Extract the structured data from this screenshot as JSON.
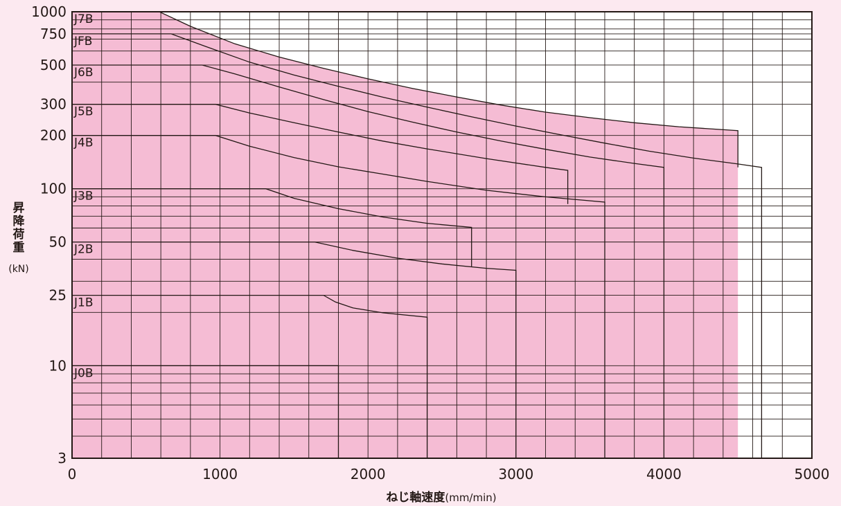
{
  "colors": {
    "background": "#fce9f0",
    "plot_background": "#ffffff",
    "fill_dark": "#f5bcd4",
    "fill_light": "#f8e1ea",
    "line": "#231815"
  },
  "chart_data": {
    "type": "area",
    "x_axis": {
      "label_main": "ねじ軸速度",
      "label_unit": "(mm/min)",
      "range": [
        0,
        5000
      ],
      "ticks": [
        0,
        1000,
        2000,
        3000,
        4000,
        5000
      ],
      "tick_labels": [
        "0",
        "1000",
        "2000",
        "3000",
        "4000",
        "5000"
      ],
      "gridlines": [
        200,
        400,
        600,
        800,
        1000,
        1200,
        1400,
        1600,
        1800,
        2000,
        2200,
        2400,
        2600,
        2800,
        3000,
        3200,
        3400,
        3600,
        3800,
        4000,
        4200,
        4400,
        4600,
        4800
      ]
    },
    "y_axis": {
      "label_main": [
        "昇",
        "降",
        "荷",
        "重"
      ],
      "label_unit": "(kN)",
      "scale": "log",
      "range": [
        3,
        1000
      ],
      "ticks": [
        3,
        10,
        25,
        50,
        100,
        200,
        300,
        500,
        750,
        1000
      ],
      "tick_labels": [
        "3",
        "10",
        "25",
        "50",
        "100",
        "200",
        "300",
        "500",
        "750",
        "1000"
      ],
      "gridlines": [
        4,
        5,
        6,
        7,
        8,
        9,
        10,
        20,
        25,
        30,
        40,
        50,
        60,
        70,
        80,
        90,
        100,
        200,
        300,
        400,
        500,
        600,
        700,
        750,
        800,
        900,
        1000
      ]
    },
    "grid": true,
    "series": [
      {
        "label": "J0B",
        "label_anchor": [
          0,
          10
        ],
        "style": "dark",
        "boundary": [
          [
            0,
            10
          ],
          [
            1800,
            10
          ],
          [
            1800,
            3
          ]
        ]
      },
      {
        "label": "J1B",
        "label_anchor": [
          0,
          25
        ],
        "style": "white",
        "boundary": [
          [
            0,
            25
          ],
          [
            1700,
            25
          ],
          [
            1780,
            22.9
          ],
          [
            1900,
            21.2
          ],
          [
            2100,
            19.9
          ],
          [
            2400,
            18.8
          ],
          [
            2400,
            3
          ]
        ]
      },
      {
        "label": "J2B",
        "label_anchor": [
          0,
          50
        ],
        "style": "dark",
        "boundary": [
          [
            0,
            50
          ],
          [
            1640,
            50
          ],
          [
            1900,
            44.8
          ],
          [
            2200,
            40.5
          ],
          [
            2500,
            37.6
          ],
          [
            2800,
            35.5
          ],
          [
            3000,
            34.6
          ],
          [
            3000,
            3
          ]
        ]
      },
      {
        "label": "J3B",
        "label_anchor": [
          0,
          100
        ],
        "style": "white",
        "boundary": [
          [
            0,
            100
          ],
          [
            1310,
            100
          ],
          [
            1500,
            88.3
          ],
          [
            1800,
            77.1
          ],
          [
            2100,
            69.2
          ],
          [
            2400,
            63.8
          ],
          [
            2700,
            60.5
          ],
          [
            2700,
            36.4
          ]
        ]
      },
      {
        "label": "J4B",
        "label_anchor": [
          0,
          200
        ],
        "style": "light",
        "boundary": [
          [
            0,
            200
          ],
          [
            970,
            200
          ],
          [
            1200,
            174
          ],
          [
            1500,
            150
          ],
          [
            1800,
            133
          ],
          [
            2100,
            121
          ],
          [
            2400,
            110
          ],
          [
            2800,
            98
          ],
          [
            3200,
            90
          ],
          [
            3600,
            84
          ],
          [
            3600,
            3
          ]
        ]
      },
      {
        "label": "J5B",
        "label_anchor": [
          0,
          300
        ],
        "style": "white",
        "boundary": [
          [
            0,
            300
          ],
          [
            970,
            300
          ],
          [
            1200,
            268
          ],
          [
            1500,
            236
          ],
          [
            1800,
            209
          ],
          [
            2100,
            186
          ],
          [
            2400,
            168
          ],
          [
            2800,
            148
          ],
          [
            3200,
            132
          ],
          [
            3350,
            127
          ],
          [
            3350,
            82
          ]
        ]
      },
      {
        "label": "J6B",
        "label_anchor": [
          0,
          500
        ],
        "style": "dark",
        "boundary": [
          [
            0,
            500
          ],
          [
            880,
            500
          ],
          [
            1100,
            446
          ],
          [
            1400,
            376
          ],
          [
            1700,
            319
          ],
          [
            2000,
            273
          ],
          [
            2300,
            238
          ],
          [
            2600,
            209
          ],
          [
            2900,
            186
          ],
          [
            3200,
            167
          ],
          [
            3500,
            151
          ],
          [
            3800,
            139
          ],
          [
            4000,
            132
          ],
          [
            4000,
            3
          ]
        ]
      },
      {
        "label": "JFB",
        "label_anchor": [
          0,
          750
        ],
        "style": "white",
        "boundary": [
          [
            0,
            750
          ],
          [
            670,
            750
          ],
          [
            900,
            638
          ],
          [
            1200,
            519
          ],
          [
            1500,
            439
          ],
          [
            1800,
            379
          ],
          [
            2100,
            329
          ],
          [
            2400,
            289
          ],
          [
            2700,
            255
          ],
          [
            3000,
            226
          ],
          [
            3300,
            202
          ],
          [
            3600,
            181
          ],
          [
            3900,
            163
          ],
          [
            4200,
            149
          ],
          [
            4500,
            138
          ],
          [
            4660,
            132
          ],
          [
            4660,
            3
          ]
        ]
      },
      {
        "label": "J7B",
        "label_anchor": [
          0,
          1000
        ],
        "style": "dark",
        "boundary": [
          [
            0,
            1000
          ],
          [
            590,
            1000
          ],
          [
            800,
            828
          ],
          [
            1100,
            659
          ],
          [
            1400,
            555
          ],
          [
            1700,
            479
          ],
          [
            2000,
            418
          ],
          [
            2300,
            369
          ],
          [
            2600,
            330
          ],
          [
            2900,
            297
          ],
          [
            3200,
            271
          ],
          [
            3500,
            252
          ],
          [
            3800,
            236
          ],
          [
            4100,
            224
          ],
          [
            4500,
            213
          ],
          [
            4500,
            132
          ]
        ]
      }
    ]
  }
}
